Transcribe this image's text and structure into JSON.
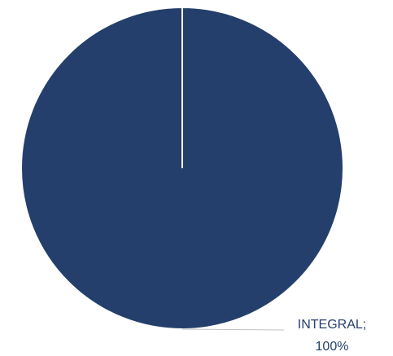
{
  "chart_data": {
    "type": "pie",
    "categories": [
      "INTEGRAL;"
    ],
    "values": [
      100
    ],
    "value_labels": [
      "100%"
    ],
    "colors": [
      "#243f6b"
    ]
  }
}
